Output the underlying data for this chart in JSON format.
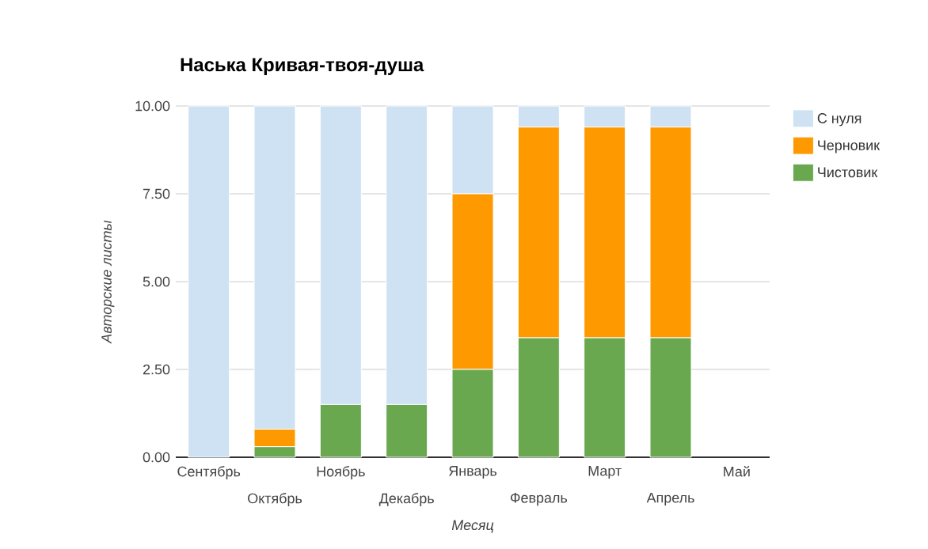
{
  "chart_data": {
    "type": "bar",
    "stacked": true,
    "title": "Наська Кривая-твоя-душа",
    "xlabel": "Месяц",
    "ylabel": "Авторские листы",
    "categories": [
      "Сентябрь",
      "Октябрь",
      "Ноябрь",
      "Декабрь",
      "Январь",
      "Февраль",
      "Март",
      "Апрель",
      "Май"
    ],
    "series": [
      {
        "name": "Чистовик",
        "color": "#6aa84f",
        "values": [
          0,
          0.3,
          1.5,
          1.5,
          2.5,
          3.4,
          3.4,
          3.4,
          null
        ]
      },
      {
        "name": "Черновик",
        "color": "#ff9900",
        "values": [
          0,
          0.5,
          0,
          0,
          5.0,
          6.0,
          6.0,
          6.0,
          null
        ]
      },
      {
        "name": "С нуля",
        "color": "#cfe2f3",
        "values": [
          10,
          9.2,
          8.5,
          8.5,
          2.5,
          0.6,
          0.6,
          0.6,
          null
        ]
      }
    ],
    "ylim": [
      0,
      10
    ],
    "yticks": [
      {
        "value": 0,
        "label": "0.00"
      },
      {
        "value": 2.5,
        "label": "2.50"
      },
      {
        "value": 5,
        "label": "5.00"
      },
      {
        "value": 7.5,
        "label": "7.50"
      },
      {
        "value": 10,
        "label": "10.00"
      }
    ],
    "grid": "y",
    "legend": "right"
  }
}
